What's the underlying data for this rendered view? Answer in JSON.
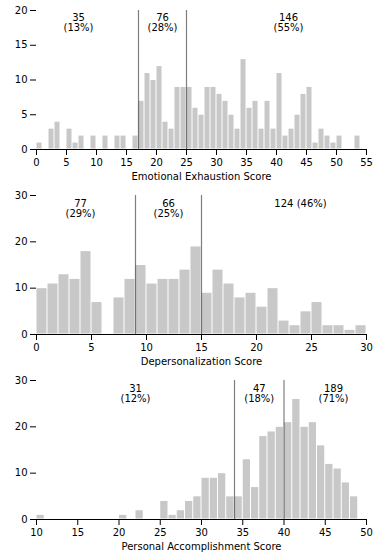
{
  "chart_data": [
    {
      "type": "histogram",
      "xlabel": "Emotional Exhaustion Score",
      "bins": [
        0,
        1,
        2,
        3,
        4,
        5,
        6,
        7,
        8,
        9,
        10,
        11,
        12,
        13,
        14,
        15,
        16,
        17,
        18,
        19,
        20,
        21,
        22,
        23,
        24,
        25,
        26,
        27,
        28,
        29,
        30,
        31,
        32,
        33,
        34,
        35,
        36,
        37,
        38,
        39,
        40,
        41,
        42,
        43,
        44,
        45,
        46,
        47,
        48,
        49,
        50,
        51,
        52,
        53,
        54
      ],
      "values": [
        1,
        0,
        3,
        4,
        0,
        3,
        1,
        2,
        0,
        2,
        0,
        2,
        0,
        2,
        2,
        0,
        2,
        7,
        11,
        10,
        12,
        4,
        3,
        9,
        9,
        9,
        6,
        5,
        9,
        9,
        8,
        7,
        5,
        3,
        13,
        6,
        7,
        3,
        7,
        3,
        11,
        2,
        3,
        5,
        8,
        9,
        1,
        3,
        2,
        1,
        2,
        0,
        0,
        2
      ],
      "color": "#c8c8c8",
      "xlim": [
        0,
        55
      ],
      "ylim": [
        0,
        20
      ],
      "xticks": [
        0,
        5,
        10,
        15,
        20,
        25,
        30,
        35,
        40,
        45,
        50,
        55
      ],
      "yticks": [
        0,
        5,
        10,
        15,
        20
      ],
      "vlines": [
        17,
        25
      ],
      "annotations": [
        {
          "x": 7,
          "y": 19.5,
          "text": "35\n(13%)"
        },
        {
          "x": 21,
          "y": 19.5,
          "text": "76\n(28%)"
        },
        {
          "x": 42,
          "y": 19.5,
          "text": "146\n(55%)"
        }
      ]
    },
    {
      "type": "histogram",
      "xlabel": "Depersonalization Score",
      "bins": [
        0,
        1,
        2,
        3,
        4,
        5,
        6,
        7,
        8,
        9,
        10,
        11,
        12,
        13,
        14,
        15,
        16,
        17,
        18,
        19,
        20,
        21,
        22,
        23,
        24,
        25,
        26,
        27,
        28,
        29,
        30
      ],
      "values": [
        10,
        11,
        13,
        12,
        18,
        7,
        0,
        8,
        12,
        15,
        11,
        12,
        12,
        14,
        19,
        9,
        14,
        11,
        8,
        9,
        6,
        10,
        3,
        2,
        5,
        7,
        2,
        2,
        1,
        2
      ],
      "color": "#c8c8c8",
      "xlim": [
        0,
        30
      ],
      "ylim": [
        0,
        30
      ],
      "xticks": [
        0,
        5,
        10,
        15,
        20,
        25,
        30
      ],
      "yticks": [
        0,
        10,
        20,
        30
      ],
      "vlines": [
        9,
        15
      ],
      "annotations": [
        {
          "x": 4,
          "y": 29,
          "text": "77\n(29%)"
        },
        {
          "x": 12,
          "y": 29,
          "text": "66\n(25%)"
        },
        {
          "x": 24,
          "y": 29,
          "text": "124 (46%)"
        }
      ]
    },
    {
      "type": "histogram",
      "xlabel": "Personal Accomplishment Score",
      "bins": [
        10,
        11,
        12,
        13,
        14,
        15,
        16,
        17,
        18,
        19,
        20,
        21,
        22,
        23,
        24,
        25,
        26,
        27,
        28,
        29,
        30,
        31,
        32,
        33,
        34,
        35,
        36,
        37,
        38,
        39,
        40,
        41,
        42,
        43,
        44,
        45,
        46,
        47,
        48,
        49,
        50
      ],
      "values": [
        1,
        0,
        0,
        0,
        0,
        0,
        0,
        0,
        0,
        0,
        1,
        0,
        2,
        0,
        0,
        4,
        1,
        2,
        4,
        5,
        9,
        9,
        10,
        5,
        5,
        13,
        7,
        18,
        19,
        20,
        21,
        26,
        20,
        21,
        16,
        12,
        11,
        8,
        5,
        0
      ],
      "color": "#c8c8c8",
      "xlim": [
        10,
        50
      ],
      "ylim": [
        0,
        30
      ],
      "xticks": [
        10,
        15,
        20,
        25,
        30,
        35,
        40,
        45,
        50
      ],
      "yticks": [
        0,
        10,
        20,
        30
      ],
      "vlines": [
        34,
        40
      ],
      "annotations": [
        {
          "x": 22,
          "y": 29,
          "text": "31\n(12%)"
        },
        {
          "x": 37,
          "y": 29,
          "text": "47\n(18%)"
        },
        {
          "x": 46,
          "y": 29,
          "text": "189\n(71%)"
        }
      ]
    }
  ]
}
